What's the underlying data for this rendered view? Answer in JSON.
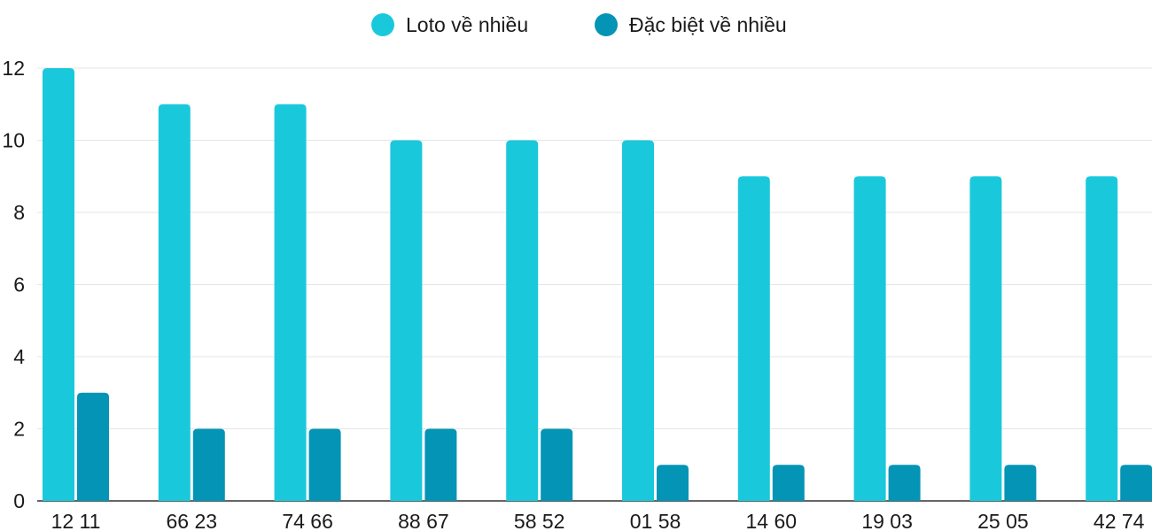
{
  "chart_data": {
    "type": "bar",
    "categories": [
      "12 11",
      "66 23",
      "74 66",
      "88 67",
      "58 52",
      "01 58",
      "14 60",
      "19 03",
      "25 05",
      "42 74"
    ],
    "series": [
      {
        "name": "Loto về nhiều",
        "values": [
          12,
          11,
          11,
          10,
          10,
          10,
          9,
          9,
          9,
          9
        ],
        "color": "#1ac8db"
      },
      {
        "name": "Đặc biệt về nhiều",
        "values": [
          3,
          2,
          2,
          2,
          2,
          1,
          1,
          1,
          1,
          1
        ],
        "color": "#0494b5"
      }
    ],
    "ylim": [
      0,
      12
    ],
    "yticks": [
      0,
      2,
      4,
      6,
      8,
      10,
      12
    ],
    "grid": true,
    "legend_position": "top-center"
  }
}
